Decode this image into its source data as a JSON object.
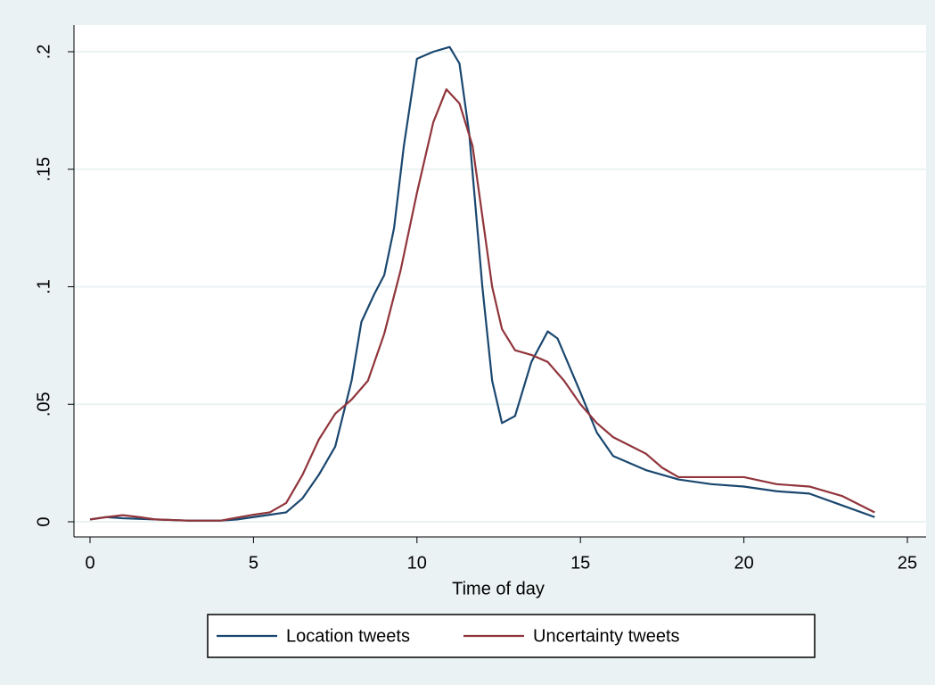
{
  "chart_data": {
    "type": "line",
    "xlabel": "Time of day",
    "xlim": [
      0,
      25
    ],
    "xticks": [
      0,
      5,
      10,
      15,
      20,
      25
    ],
    "ylim": [
      0,
      0.2
    ],
    "yticks": [
      0,
      {
        "value": 0.05,
        "label": ".05"
      },
      {
        "value": 0.1,
        "label": ".1"
      },
      {
        "value": 0.15,
        "label": ".15"
      },
      {
        "value": 0.2,
        "label": ".2"
      }
    ],
    "grid": true,
    "series": [
      {
        "name": "Location tweets",
        "color": "#1a476f",
        "x": [
          0,
          0.5,
          1,
          2,
          3,
          4,
          4.5,
          5,
          5.5,
          6,
          6.5,
          7,
          7.5,
          8,
          8.3,
          8.7,
          9,
          9.3,
          9.6,
          10,
          10.5,
          11,
          11.3,
          11.6,
          12,
          12.3,
          12.6,
          13,
          13.5,
          14,
          14.3,
          15,
          15.5,
          16,
          17,
          18,
          19,
          20,
          20.5,
          21,
          22,
          23,
          24
        ],
        "values": [
          0.001,
          0.002,
          0.0015,
          0.001,
          0.0005,
          0.0005,
          0.001,
          0.002,
          0.003,
          0.004,
          0.01,
          0.02,
          0.032,
          0.06,
          0.085,
          0.097,
          0.105,
          0.125,
          0.16,
          0.197,
          0.2,
          0.202,
          0.195,
          0.165,
          0.1,
          0.06,
          0.042,
          0.045,
          0.068,
          0.081,
          0.078,
          0.055,
          0.038,
          0.028,
          0.022,
          0.018,
          0.016,
          0.015,
          0.014,
          0.013,
          0.012,
          0.007,
          0.002
        ]
      },
      {
        "name": "Uncertainty tweets",
        "color": "#90353b",
        "x": [
          0,
          0.5,
          1,
          1.5,
          2,
          3,
          4,
          5,
          5.5,
          6,
          6.5,
          7,
          7.5,
          8,
          8.5,
          9,
          9.5,
          10,
          10.5,
          10.9,
          11.3,
          11.7,
          12,
          12.3,
          12.6,
          13,
          13.5,
          14,
          14.5,
          15,
          15.5,
          16,
          17,
          17.5,
          18,
          19,
          20,
          21,
          22,
          23,
          24
        ],
        "values": [
          0.001,
          0.002,
          0.0028,
          0.002,
          0.001,
          0.0005,
          0.0005,
          0.003,
          0.004,
          0.008,
          0.02,
          0.035,
          0.046,
          0.052,
          0.06,
          0.08,
          0.107,
          0.14,
          0.17,
          0.184,
          0.178,
          0.16,
          0.13,
          0.1,
          0.082,
          0.073,
          0.071,
          0.068,
          0.06,
          0.05,
          0.042,
          0.036,
          0.029,
          0.023,
          0.019,
          0.019,
          0.019,
          0.016,
          0.015,
          0.011,
          0.004
        ]
      }
    ]
  }
}
